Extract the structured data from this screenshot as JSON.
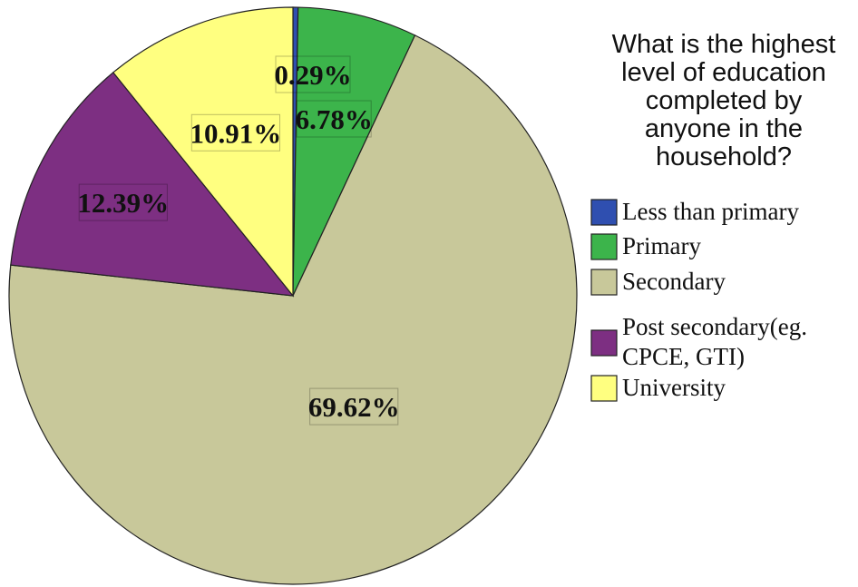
{
  "chart_data": {
    "type": "pie",
    "title": "",
    "legend_title_lines": [
      "What is the highest",
      "level of education",
      "completed by",
      "anyone in the",
      "household?"
    ],
    "legend_position": "right",
    "slices": [
      {
        "label_lines": [
          "Less than primary"
        ],
        "value": 0.29,
        "display": "0.29%",
        "color": "#2f4fb0"
      },
      {
        "label_lines": [
          "Primary"
        ],
        "value": 6.78,
        "display": "6.78%",
        "color": "#3cb44b"
      },
      {
        "label_lines": [
          "Secondary"
        ],
        "value": 69.62,
        "display": "69.62%",
        "color": "#c8c89a"
      },
      {
        "label_lines": [
          "Post secondary(eg.",
          "CPCE, GTI)"
        ],
        "value": 12.39,
        "display": "12.39%",
        "color": "#7d2f82"
      },
      {
        "label_lines": [
          "University"
        ],
        "value": 10.91,
        "display": "10.91%",
        "color": "#ffff80"
      }
    ]
  }
}
